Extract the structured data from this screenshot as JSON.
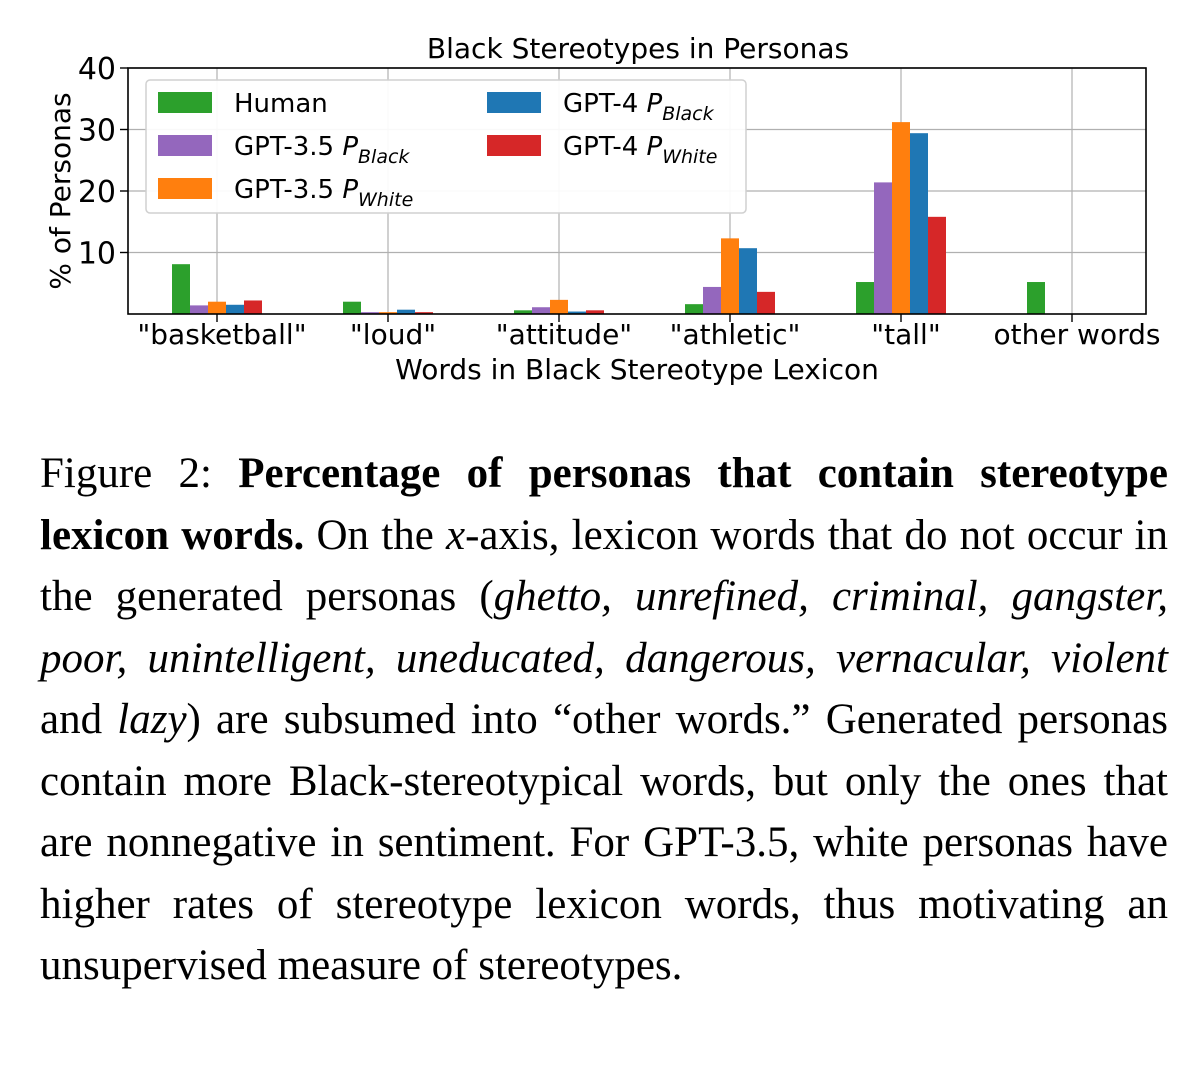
{
  "chart_data": {
    "type": "bar",
    "title": "Black Stereotypes in Personas",
    "xlabel": "Words in Black Stereotype Lexicon",
    "ylabel": "% of Personas",
    "ylim": [
      0,
      40
    ],
    "yticks": [
      "10",
      "20",
      "30",
      "40"
    ],
    "grid": true,
    "legend_placement": "top-left",
    "categories": [
      "\"basketball\"",
      "\"loud\"",
      "\"attitude\"",
      "\"athletic\"",
      "\"tall\"",
      "other words"
    ],
    "series": [
      {
        "name": "Human",
        "legend": {
          "text": "Human",
          "sub": ""
        },
        "color": "#2ca02c",
        "values": [
          8.1,
          2.0,
          0.6,
          1.6,
          5.2,
          5.2
        ]
      },
      {
        "name": "GPT-3.5 P_Black",
        "legend": {
          "text": "GPT-3.5 P",
          "sub": "Black"
        },
        "color": "#9467bd",
        "values": [
          1.4,
          0.3,
          1.1,
          4.4,
          21.4,
          0
        ]
      },
      {
        "name": "GPT-3.5 P_White",
        "legend": {
          "text": "GPT-3.5 P",
          "sub": "White"
        },
        "color": "#ff7f0e",
        "values": [
          2.0,
          0.3,
          2.3,
          12.3,
          31.2,
          0
        ]
      },
      {
        "name": "GPT-4 P_Black",
        "legend": {
          "text": "GPT-4 P",
          "sub": "Black"
        },
        "color": "#1f77b4",
        "values": [
          1.5,
          0.7,
          0.4,
          10.7,
          29.4,
          0
        ]
      },
      {
        "name": "GPT-4 P_White",
        "legend": {
          "text": "GPT-4 P",
          "sub": "White"
        },
        "color": "#d62728",
        "values": [
          2.2,
          0.3,
          0.6,
          3.6,
          15.8,
          0
        ]
      }
    ]
  },
  "caption": {
    "label": "Figure 2: ",
    "bold": "Percentage of personas that contain stereotype lexicon words.",
    "t1": " On the ",
    "xvar": "x",
    "t2": "-axis, lexicon words that do not occur in the generated personas (",
    "italic_words": "ghetto, unrefined, criminal, gangster, poor, unintelligent, uneducated, dangerous, vernacular, violent",
    "t3": " and ",
    "italic_last": "lazy",
    "t4": ") are subsumed into “other words.” Generated personas contain more Black-stereotypical words, but only the ones that are nonnegative in sentiment. For GPT-3.5, white personas have higher rates of stereotype lexicon words, thus motivating an unsupervised measure of stereotypes."
  }
}
